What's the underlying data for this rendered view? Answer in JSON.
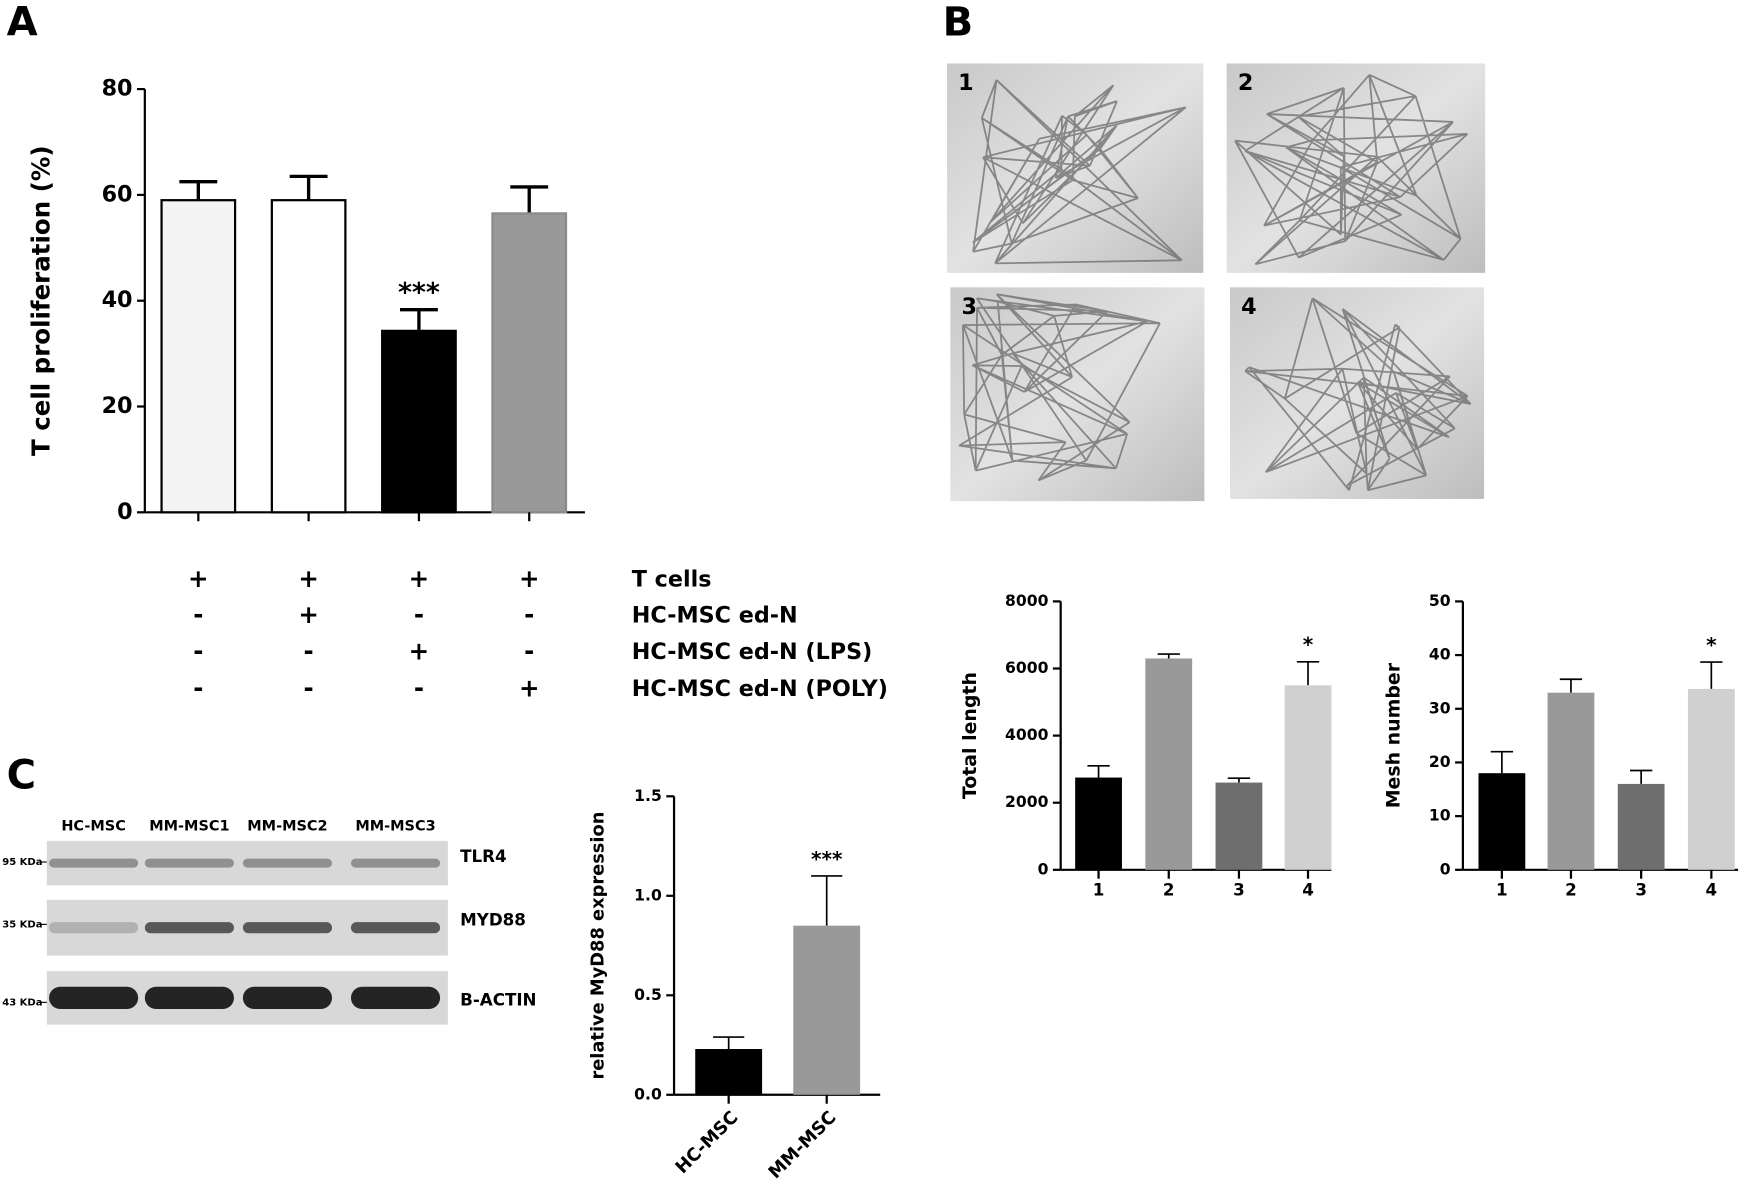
{
  "panels": {
    "a": "A",
    "b": "B",
    "c": "C"
  },
  "chart_data": [
    {
      "type": "bar",
      "y_label": "T cell proliferation (%)",
      "categories": [
        null,
        null,
        null,
        null
      ],
      "values": [
        59,
        59,
        34.3,
        56.5
      ],
      "errors": [
        3.5,
        4.5,
        4,
        5
      ],
      "colors": [
        "#f4f4f4",
        "#ffffff",
        "#000000",
        "#999999"
      ],
      "ylim": [
        0,
        80
      ],
      "yticks": [
        0,
        20,
        40,
        60,
        80
      ],
      "significance": [
        null,
        null,
        "***",
        null
      ]
    },
    {
      "type": "bar",
      "y_label": "Total length",
      "categories": [
        "1",
        "2",
        "3",
        "4"
      ],
      "values": [
        2750,
        6300,
        2600,
        5500
      ],
      "errors": [
        350,
        130,
        130,
        700
      ],
      "colors": [
        "#000000",
        "#999999",
        "#6e6e6e",
        "#d0d0d0"
      ],
      "ylim": [
        0,
        8000
      ],
      "yticks": [
        0,
        2000,
        4000,
        6000,
        8000
      ],
      "significance": [
        null,
        null,
        null,
        "*"
      ]
    },
    {
      "type": "bar",
      "y_label": "Mesh number",
      "categories": [
        "1",
        "2",
        "3",
        "4"
      ],
      "values": [
        18,
        33,
        16,
        33.7
      ],
      "errors": [
        4,
        2.5,
        2.5,
        5
      ],
      "colors": [
        "#000000",
        "#999999",
        "#6e6e6e",
        "#d0d0d0"
      ],
      "ylim": [
        0,
        50
      ],
      "yticks": [
        0,
        10,
        20,
        30,
        40,
        50
      ],
      "significance": [
        null,
        null,
        null,
        "*"
      ]
    },
    {
      "type": "bar",
      "y_label": "relative MyD88 expression",
      "categories": [
        "HC-MSC",
        "MM-MSC"
      ],
      "values": [
        0.23,
        0.85
      ],
      "errors": [
        0.06,
        0.25
      ],
      "colors": [
        "#000000",
        "#999999"
      ],
      "ylim": [
        0,
        1.5
      ],
      "yticks": [
        {
          "value": 0,
          "label": "0.0"
        },
        0.5,
        {
          "value": 1,
          "label": "1.0"
        },
        1.5
      ],
      "significance": [
        null,
        "***"
      ]
    }
  ],
  "condition_table": [
    {
      "label": "T cells",
      "signs": [
        "+",
        "+",
        "+",
        "+"
      ]
    },
    {
      "label": "HC-MSC ed-N",
      "signs": [
        "-",
        "+",
        "-",
        "-"
      ]
    },
    {
      "label": "HC-MSC ed-N (LPS)",
      "signs": [
        "-",
        "-",
        "+",
        "-"
      ]
    },
    {
      "label": "HC-MSC ed-N (POLY)",
      "signs": [
        "-",
        "-",
        "-",
        "+"
      ]
    }
  ],
  "images": [
    "1",
    "2",
    "3",
    "4"
  ],
  "blot": {
    "lanes": [
      "HC-MSC",
      "MM-MSC1",
      "MM-MSC2",
      "MM-MSC3"
    ],
    "rows": [
      {
        "marker": "95 KDa",
        "protein": "TLR4"
      },
      {
        "marker": "35 KDa",
        "protein": "MYD88"
      },
      {
        "marker": "43 KDa",
        "protein": "B-ACTIN"
      }
    ]
  }
}
